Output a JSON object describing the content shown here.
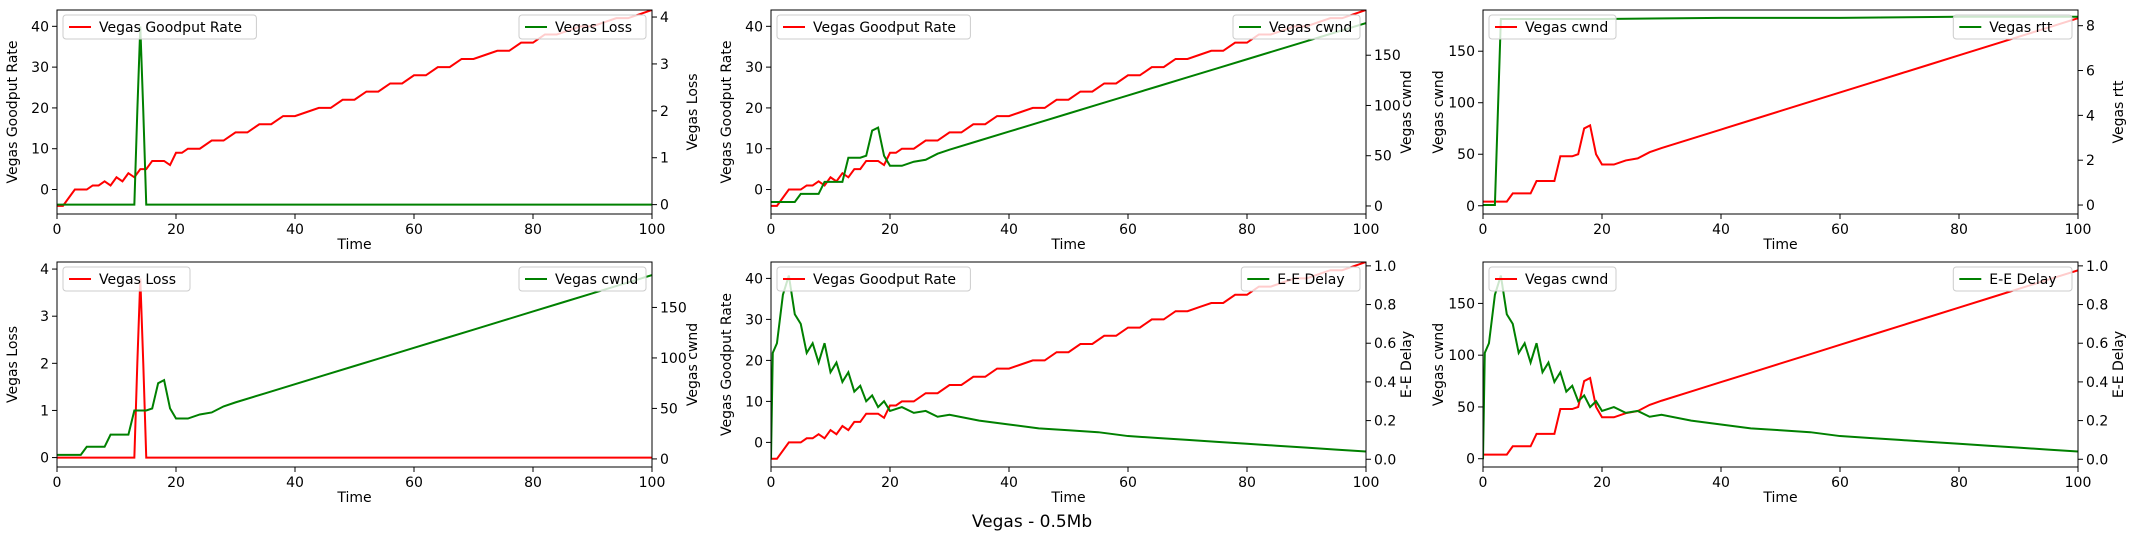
{
  "suptitle": "Vegas - 0.5Mb",
  "colors": {
    "primary": "#ff0000",
    "secondary": "#008000",
    "axes": "#000000",
    "legend_border": "#cccccc"
  },
  "chart_data": [
    {
      "type": "line",
      "xlabel": "Time",
      "xlim": [
        0,
        100
      ],
      "xticks": [
        0,
        20,
        40,
        60,
        80,
        100
      ],
      "left": {
        "ylabel": "Vegas Goodput Rate",
        "ylim": [
          -6,
          44
        ],
        "yticks": [
          0,
          10,
          20,
          30,
          40
        ],
        "series": [
          {
            "name": "Vegas Goodput Rate",
            "color": "#ff0000",
            "kind": "goodput"
          }
        ],
        "legend": "upper-left"
      },
      "right": {
        "ylabel": "Vegas Loss",
        "ylim": [
          -0.2,
          4.15
        ],
        "yticks": [
          0,
          1,
          2,
          3,
          4
        ],
        "series": [
          {
            "name": "Vegas Loss",
            "color": "#008000",
            "kind": "loss"
          }
        ],
        "legend": "upper-right"
      }
    },
    {
      "type": "line",
      "xlabel": "Time",
      "xlim": [
        0,
        100
      ],
      "xticks": [
        0,
        20,
        40,
        60,
        80,
        100
      ],
      "left": {
        "ylabel": "Vegas Goodput Rate",
        "ylim": [
          -6,
          44
        ],
        "yticks": [
          0,
          10,
          20,
          30,
          40
        ],
        "series": [
          {
            "name": "Vegas Goodput Rate",
            "color": "#ff0000",
            "kind": "goodput"
          }
        ],
        "legend": "upper-left"
      },
      "right": {
        "ylabel": "Vegas cwnd",
        "ylim": [
          -8,
          195
        ],
        "yticks": [
          0,
          50,
          100,
          150
        ],
        "series": [
          {
            "name": "Vegas cwnd",
            "color": "#008000",
            "kind": "cwnd"
          }
        ],
        "legend": "upper-right"
      }
    },
    {
      "type": "line",
      "xlabel": "Time",
      "xlim": [
        0,
        100
      ],
      "xticks": [
        0,
        20,
        40,
        60,
        80,
        100
      ],
      "left": {
        "ylabel": "Vegas cwnd",
        "ylim": [
          -8,
          190
        ],
        "yticks": [
          0,
          50,
          100,
          150
        ],
        "series": [
          {
            "name": "Vegas cwnd",
            "color": "#ff0000",
            "kind": "cwnd"
          }
        ],
        "legend": "upper-left"
      },
      "right": {
        "ylabel": "Vegas rtt",
        "ylim": [
          -0.4,
          8.7
        ],
        "yticks": [
          0,
          2,
          4,
          6,
          8
        ],
        "series": [
          {
            "name": "Vegas rtt",
            "color": "#008000",
            "kind": "rtt"
          }
        ],
        "legend": "upper-right"
      }
    },
    {
      "type": "line",
      "xlabel": "Time",
      "xlim": [
        0,
        100
      ],
      "xticks": [
        0,
        20,
        40,
        60,
        80,
        100
      ],
      "left": {
        "ylabel": "Vegas Loss",
        "ylim": [
          -0.2,
          4.15
        ],
        "yticks": [
          0,
          1,
          2,
          3,
          4
        ],
        "series": [
          {
            "name": "Vegas Loss",
            "color": "#ff0000",
            "kind": "loss"
          }
        ],
        "legend": "upper-left"
      },
      "right": {
        "ylabel": "Vegas cwnd",
        "ylim": [
          -8,
          195
        ],
        "yticks": [
          0,
          50,
          100,
          150
        ],
        "series": [
          {
            "name": "Vegas cwnd",
            "color": "#008000",
            "kind": "cwnd"
          }
        ],
        "legend": "upper-right"
      }
    },
    {
      "type": "line",
      "xlabel": "Time",
      "xlim": [
        0,
        100
      ],
      "xticks": [
        0,
        20,
        40,
        60,
        80,
        100
      ],
      "left": {
        "ylabel": "Vegas Goodput Rate",
        "ylim": [
          -6,
          44
        ],
        "yticks": [
          0,
          10,
          20,
          30,
          40
        ],
        "series": [
          {
            "name": "Vegas Goodput Rate",
            "color": "#ff0000",
            "kind": "goodput"
          }
        ],
        "legend": "upper-left"
      },
      "right": {
        "ylabel": "E-E Delay",
        "ylim": [
          -0.04,
          1.02
        ],
        "yticks": [
          0.0,
          0.2,
          0.4,
          0.6,
          0.8,
          1.0
        ],
        "series": [
          {
            "name": "E-E Delay",
            "color": "#008000",
            "kind": "delay"
          }
        ],
        "legend": "upper-right"
      }
    },
    {
      "type": "line",
      "xlabel": "Time",
      "xlim": [
        0,
        100
      ],
      "xticks": [
        0,
        20,
        40,
        60,
        80,
        100
      ],
      "left": {
        "ylabel": "Vegas cwnd",
        "ylim": [
          -8,
          190
        ],
        "yticks": [
          0,
          50,
          100,
          150
        ],
        "series": [
          {
            "name": "Vegas cwnd",
            "color": "#ff0000",
            "kind": "cwnd"
          }
        ],
        "legend": "upper-left"
      },
      "right": {
        "ylabel": "E-E Delay",
        "ylim": [
          -0.04,
          1.02
        ],
        "yticks": [
          0.0,
          0.2,
          0.4,
          0.6,
          0.8,
          1.0
        ],
        "series": [
          {
            "name": "E-E Delay",
            "color": "#008000",
            "kind": "delay"
          }
        ],
        "legend": "upper-right"
      }
    }
  ],
  "series_data": {
    "goodput": [
      [
        0,
        -4
      ],
      [
        1,
        -4
      ],
      [
        3,
        0
      ],
      [
        4,
        0
      ],
      [
        5,
        0
      ],
      [
        6,
        1
      ],
      [
        7,
        1
      ],
      [
        8,
        2
      ],
      [
        9,
        1
      ],
      [
        10,
        3
      ],
      [
        11,
        2
      ],
      [
        12,
        4
      ],
      [
        13,
        3
      ],
      [
        14,
        5
      ],
      [
        15,
        5
      ],
      [
        16,
        7
      ],
      [
        17,
        7
      ],
      [
        18,
        7
      ],
      [
        19,
        6
      ],
      [
        20,
        9
      ],
      [
        21,
        9
      ],
      [
        22,
        10
      ],
      [
        24,
        10
      ],
      [
        26,
        12
      ],
      [
        28,
        12
      ],
      [
        30,
        14
      ],
      [
        32,
        14
      ],
      [
        34,
        16
      ],
      [
        36,
        16
      ],
      [
        38,
        18
      ],
      [
        40,
        18
      ],
      [
        42,
        19
      ],
      [
        44,
        20
      ],
      [
        46,
        20
      ],
      [
        48,
        22
      ],
      [
        50,
        22
      ],
      [
        52,
        24
      ],
      [
        54,
        24
      ],
      [
        56,
        26
      ],
      [
        58,
        26
      ],
      [
        60,
        28
      ],
      [
        62,
        28
      ],
      [
        64,
        30
      ],
      [
        66,
        30
      ],
      [
        68,
        32
      ],
      [
        70,
        32
      ],
      [
        72,
        33
      ],
      [
        74,
        34
      ],
      [
        76,
        34
      ],
      [
        78,
        36
      ],
      [
        80,
        36
      ],
      [
        82,
        38
      ],
      [
        84,
        38
      ],
      [
        86,
        39
      ],
      [
        88,
        40
      ],
      [
        90,
        40
      ],
      [
        92,
        41
      ],
      [
        94,
        42
      ],
      [
        96,
        42
      ],
      [
        98,
        43
      ],
      [
        100,
        44
      ]
    ],
    "loss": [
      [
        0,
        0
      ],
      [
        13,
        0
      ],
      [
        13.5,
        2
      ],
      [
        14,
        3.8
      ],
      [
        14.5,
        2
      ],
      [
        15,
        0
      ],
      [
        100,
        0
      ]
    ],
    "cwnd": [
      [
        0,
        4
      ],
      [
        4,
        4
      ],
      [
        5,
        12
      ],
      [
        8,
        12
      ],
      [
        9,
        24
      ],
      [
        12,
        24
      ],
      [
        13,
        48
      ],
      [
        15,
        48
      ],
      [
        16,
        50
      ],
      [
        17,
        75
      ],
      [
        18,
        78
      ],
      [
        19,
        50
      ],
      [
        20,
        40
      ],
      [
        22,
        40
      ],
      [
        24,
        44
      ],
      [
        26,
        46
      ],
      [
        28,
        52
      ],
      [
        30,
        56
      ],
      [
        35,
        65
      ],
      [
        40,
        74
      ],
      [
        45,
        83
      ],
      [
        50,
        92
      ],
      [
        55,
        101
      ],
      [
        60,
        110
      ],
      [
        65,
        119
      ],
      [
        70,
        128
      ],
      [
        75,
        137
      ],
      [
        80,
        146
      ],
      [
        85,
        155
      ],
      [
        90,
        164
      ],
      [
        95,
        173
      ],
      [
        100,
        182
      ]
    ],
    "rtt": [
      [
        0,
        0
      ],
      [
        2,
        0
      ],
      [
        3,
        8.3
      ],
      [
        20,
        8.3
      ],
      [
        40,
        8.35
      ],
      [
        60,
        8.35
      ],
      [
        80,
        8.4
      ],
      [
        100,
        8.4
      ]
    ],
    "delay": [
      [
        0,
        0
      ],
      [
        0.3,
        0.55
      ],
      [
        1,
        0.6
      ],
      [
        2,
        0.85
      ],
      [
        3,
        0.95
      ],
      [
        4,
        0.75
      ],
      [
        5,
        0.7
      ],
      [
        6,
        0.55
      ],
      [
        7,
        0.6
      ],
      [
        8,
        0.5
      ],
      [
        9,
        0.6
      ],
      [
        10,
        0.45
      ],
      [
        11,
        0.5
      ],
      [
        12,
        0.4
      ],
      [
        13,
        0.45
      ],
      [
        14,
        0.35
      ],
      [
        15,
        0.38
      ],
      [
        16,
        0.3
      ],
      [
        17,
        0.33
      ],
      [
        18,
        0.27
      ],
      [
        19,
        0.3
      ],
      [
        20,
        0.25
      ],
      [
        22,
        0.27
      ],
      [
        24,
        0.24
      ],
      [
        26,
        0.25
      ],
      [
        28,
        0.22
      ],
      [
        30,
        0.23
      ],
      [
        35,
        0.2
      ],
      [
        40,
        0.18
      ],
      [
        45,
        0.16
      ],
      [
        50,
        0.15
      ],
      [
        55,
        0.14
      ],
      [
        60,
        0.12
      ],
      [
        65,
        0.11
      ],
      [
        70,
        0.1
      ],
      [
        75,
        0.09
      ],
      [
        80,
        0.08
      ],
      [
        85,
        0.07
      ],
      [
        90,
        0.06
      ],
      [
        95,
        0.05
      ],
      [
        100,
        0.04
      ]
    ]
  }
}
